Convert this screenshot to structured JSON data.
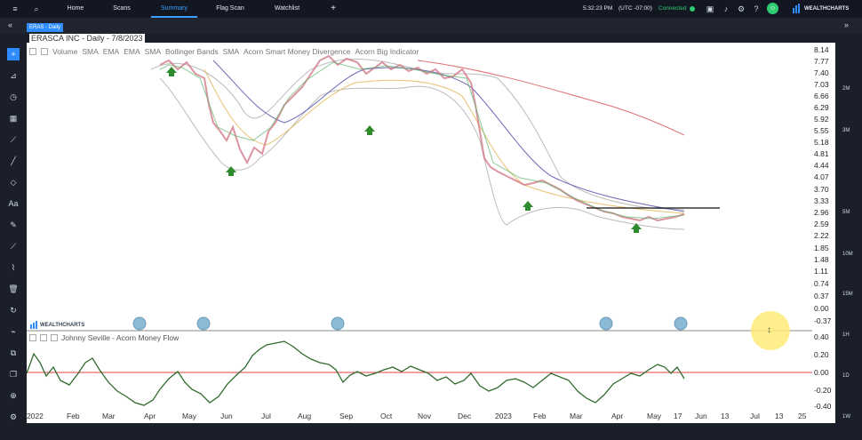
{
  "nav": {
    "tabs": [
      "Home",
      "Scans",
      "Summary",
      "Flag Scan",
      "Watchlist"
    ],
    "active_tab": "Summary",
    "plus": "+"
  },
  "status": {
    "time": "5:32:23 PM",
    "timezone": "(UTC -07:00)",
    "connection": "Connected",
    "brand": "WEALTHCHARTS"
  },
  "symbol_tag": "ERAS - Daily",
  "chart_header": "ERASCA INC - Daily - 7/8/2023",
  "indicators": [
    "Volume",
    "SMA",
    "EMA",
    "EMA",
    "SMA",
    "Bollinger Bands",
    "SMA",
    "Acorn Smart Money Divergence",
    "Acorn Big Indicator"
  ],
  "watermark": "WEALTHCHARTS",
  "money_flow_title": "Johnny Seville - Acorn Money Flow",
  "price_ticks": [
    "8.14",
    "7.77",
    "7.40",
    "7.03",
    "6.66",
    "6.29",
    "5.92",
    "5.55",
    "5.18",
    "4.81",
    "4.44",
    "4.07",
    "3.70",
    "3.33",
    "2.96",
    "2.59",
    "2.22",
    "1.85",
    "1.48",
    "1.11",
    "0.74",
    "0.37",
    "0.00",
    "-0.37"
  ],
  "money_flow_ticks": [
    "0.40",
    "0.20",
    "0.00",
    "-0.20",
    "-0.40"
  ],
  "time_ticks": [
    "2022",
    "Feb",
    "Mar",
    "Apr",
    "May",
    "Jun",
    "Jul",
    "Aug",
    "Sep",
    "Oct",
    "Nov",
    "Dec",
    "2023",
    "Feb",
    "Mar",
    "Apr",
    "May",
    "17",
    "Jun",
    "13",
    "Jul",
    "13",
    "25"
  ],
  "right_labels": [
    "2M",
    "3M",
    "5M",
    "10M",
    "15M",
    "1H",
    "1D",
    "1W"
  ],
  "colors": {
    "accent": "#2f8cff",
    "connected": "#2ecc71",
    "arrow_up": "#2e8b2e",
    "money_flow": "#2f6b2f",
    "zero_line": "#e04040",
    "bollinger": "#bbbbbb",
    "sma_long": "#e07070",
    "sma_mid": "#6a6ab8",
    "ema": "#e8c070"
  }
}
